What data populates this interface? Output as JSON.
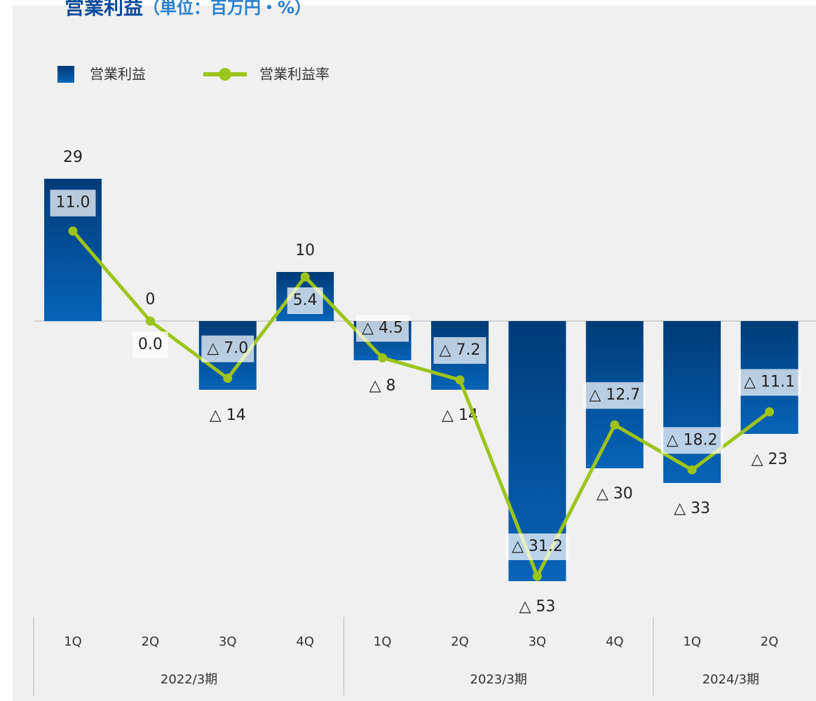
{
  "chart_data": {
    "type": "bar_line",
    "title": "営業利益",
    "subtitle": "（単位：百万円・%）",
    "categories": [
      "1Q",
      "2Q",
      "3Q",
      "4Q",
      "1Q",
      "2Q",
      "3Q",
      "4Q",
      "1Q",
      "2Q"
    ],
    "category_groups": [
      "2022/3期",
      "2023/3期",
      "2024/3期"
    ],
    "ylim": [
      -60,
      40
    ],
    "y2lim": [
      -36,
      24
    ],
    "legend": "top-left",
    "series": [
      {
        "name": "営業利益",
        "type": "bar",
        "color": "#0a5aa8",
        "values": [
          29,
          0,
          -14,
          10,
          -8,
          -14,
          -53,
          -30,
          -33,
          -23
        ],
        "value_labels": [
          "29",
          "0",
          "△ 14",
          "10",
          "△ 8",
          "△ 14",
          "△ 53",
          "△ 30",
          "△ 33",
          "△ 23"
        ]
      },
      {
        "name": "営業利益率",
        "type": "line",
        "axis": "y2",
        "color": "#9dc41a",
        "values": [
          11.0,
          0.0,
          -7.0,
          5.4,
          -4.5,
          -7.2,
          -31.2,
          -12.7,
          -18.2,
          -11.1
        ],
        "value_labels": [
          "11.0",
          "0.0",
          "△ 7.0",
          "5.4",
          "△ 4.5",
          "△ 7.2",
          "△ 31.2",
          "△ 12.7",
          "△ 18.2",
          "△ 11.1"
        ]
      }
    ]
  }
}
